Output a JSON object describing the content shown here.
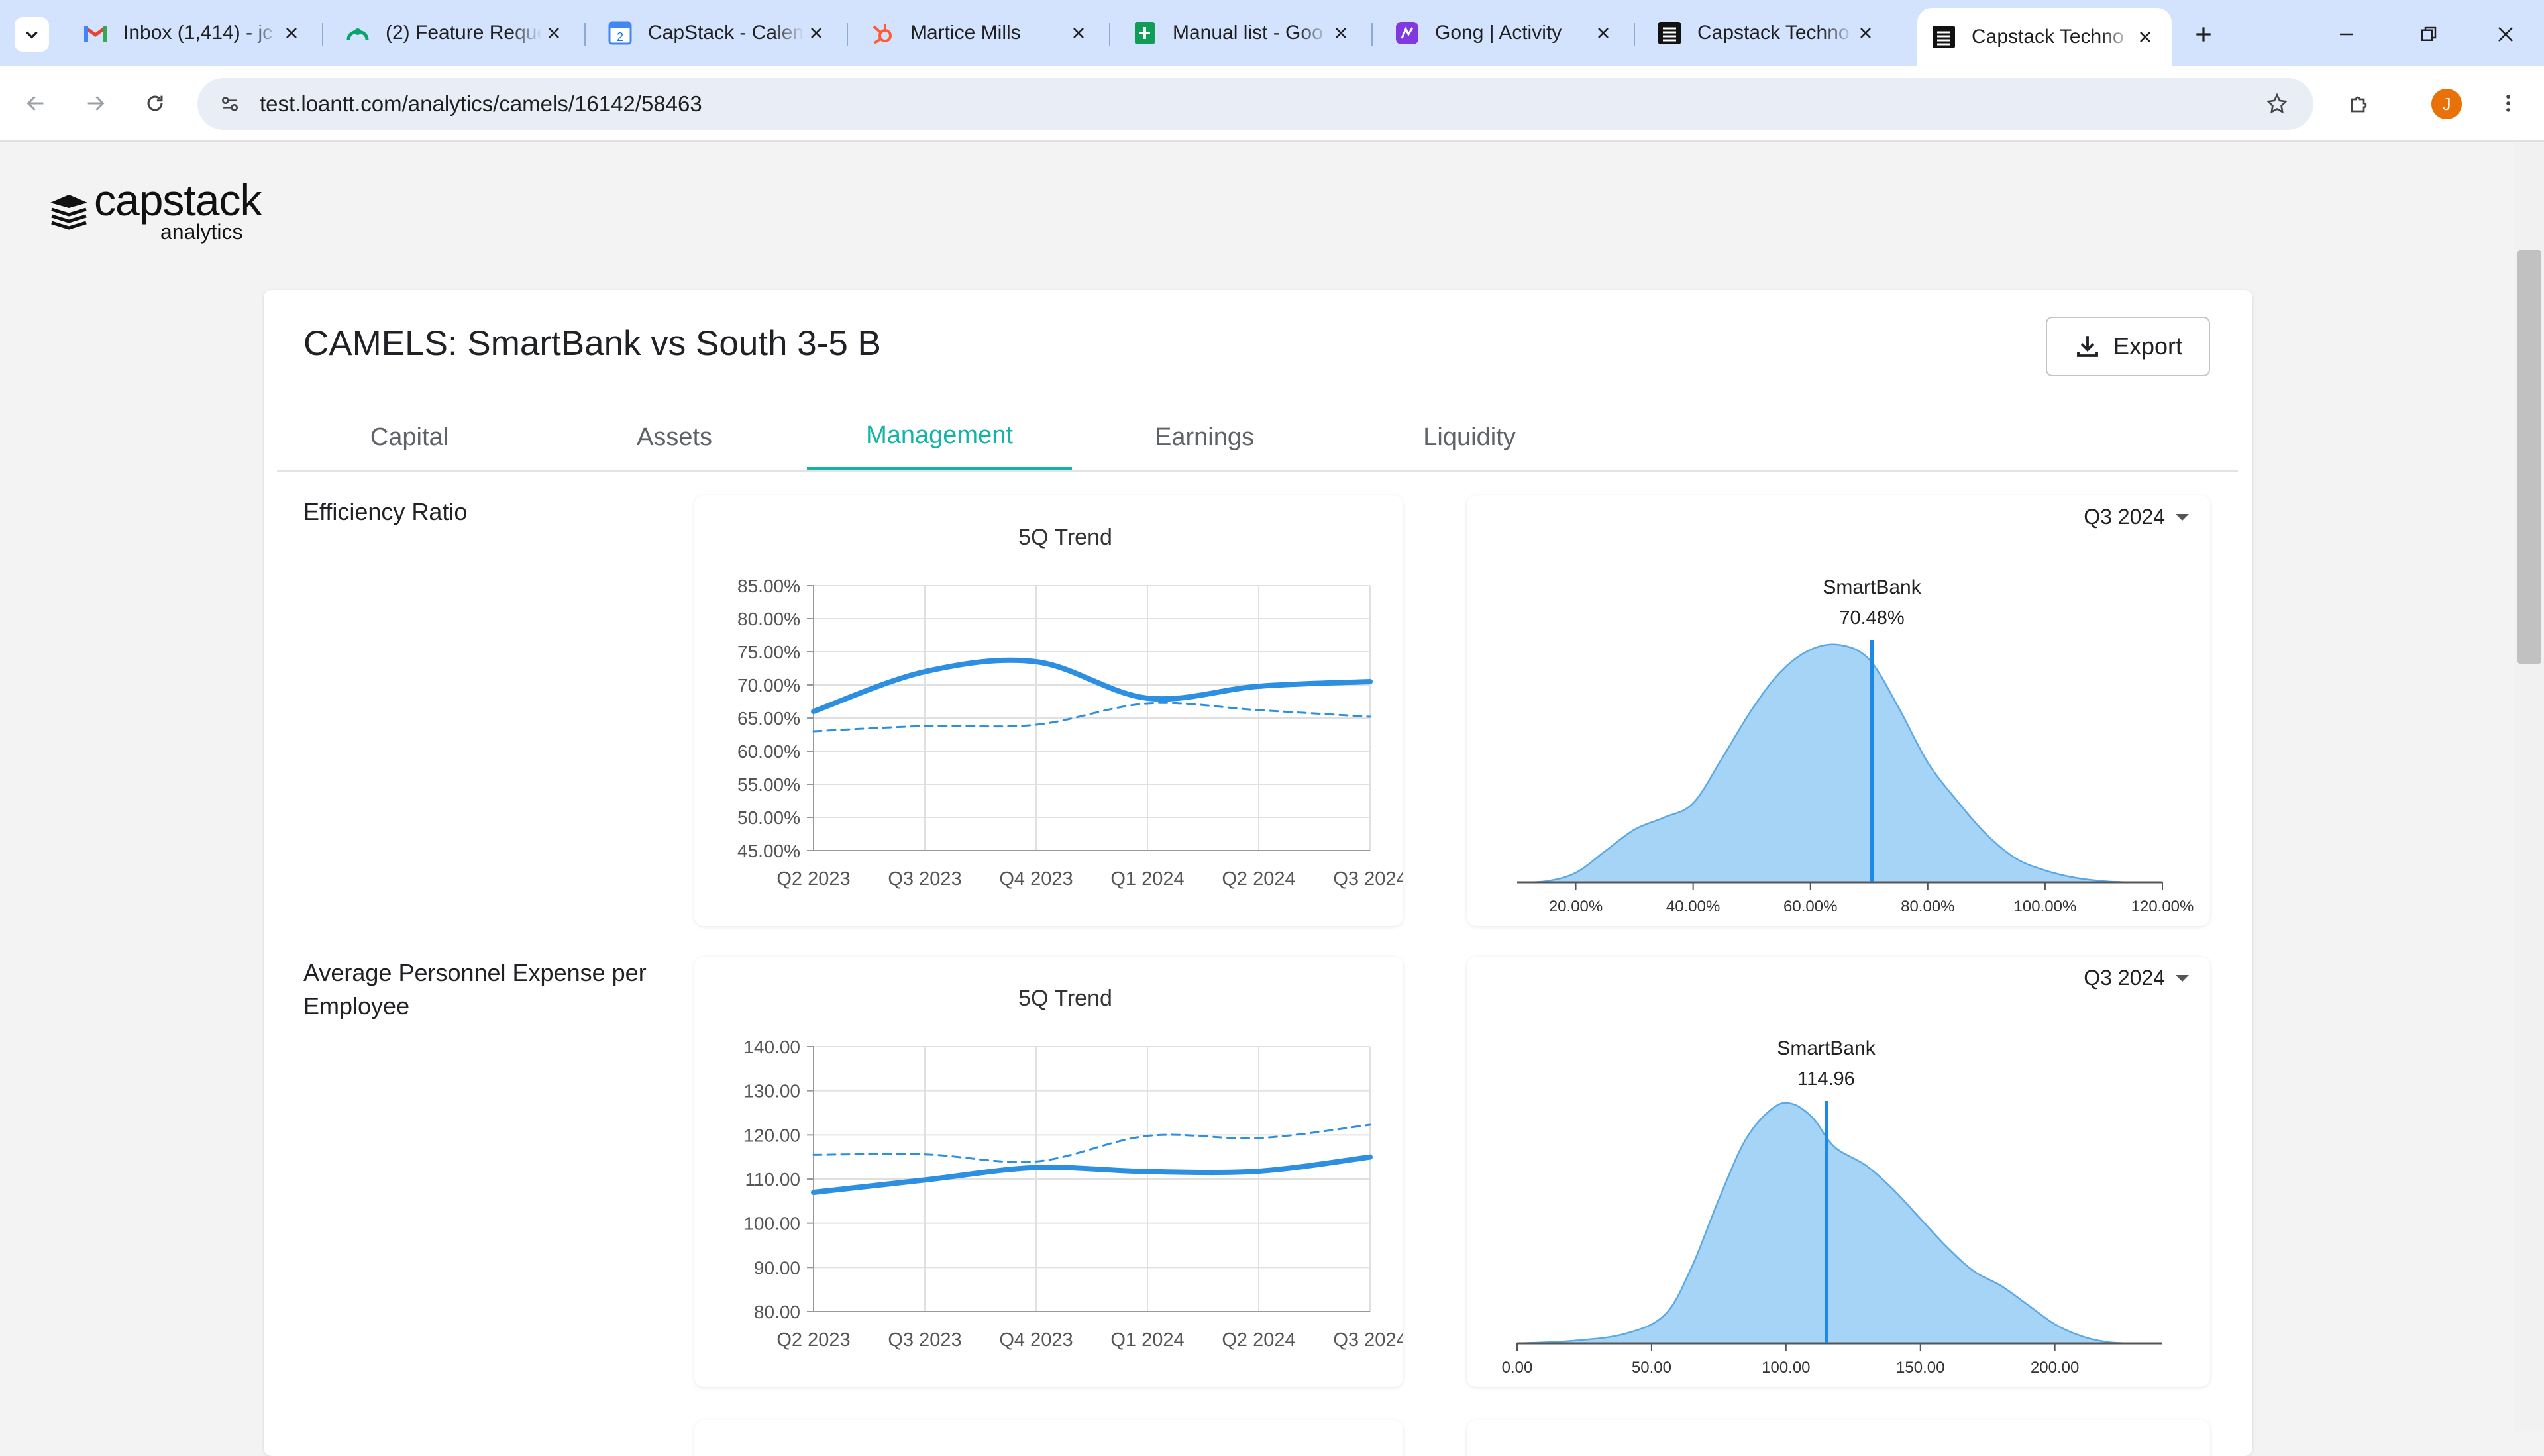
{
  "browser": {
    "tabs": [
      {
        "title": "Inbox (1,414) - jc",
        "icon": "gmail-icon",
        "active": false
      },
      {
        "title": "(2) Feature Reque",
        "icon": "feature-request-icon",
        "active": false
      },
      {
        "title": "CapStack - Calen",
        "icon": "calendar-icon",
        "active": false
      },
      {
        "title": "Martice Mills",
        "icon": "hubspot-icon",
        "active": false
      },
      {
        "title": "Manual list - Goo",
        "icon": "sheets-icon",
        "active": false
      },
      {
        "title": "Gong | Activity",
        "icon": "gong-icon",
        "active": false
      },
      {
        "title": "Capstack Techno",
        "icon": "capstack-icon",
        "active": false
      },
      {
        "title": "Capstack Techno",
        "icon": "capstack-icon",
        "active": true
      }
    ],
    "url": "test.loantt.com/analytics/camels/16142/58463",
    "profile_initial": "J",
    "colors": {
      "tabstrip": "#d3e3fd",
      "profile": "#e8710a"
    }
  },
  "app": {
    "logo": {
      "name": "capstack",
      "sub": "analytics"
    },
    "title": "CAMELS: SmartBank vs South 3-5 B",
    "export_label": "Export",
    "tabs": [
      "Capital",
      "Assets",
      "Management",
      "Earnings",
      "Liquidity"
    ],
    "active_tab": "Management",
    "accent": "#13b3a6"
  },
  "metrics": [
    {
      "label": "Efficiency Ratio",
      "quarter": "Q3 2024",
      "trend": {
        "title": "5Q Trend",
        "yticks": [
          "85.00%",
          "80.00%",
          "75.00%",
          "70.00%",
          "65.00%",
          "60.00%",
          "55.00%",
          "50.00%",
          "45.00%"
        ],
        "xticks": [
          "Q2 2023",
          "Q3 2023",
          "Q4 2023",
          "Q1 2024",
          "Q2 2024",
          "Q3 2024"
        ]
      },
      "dist": {
        "bank_name": "SmartBank",
        "bank_value_label": "70.48%",
        "xticks": [
          "20.00%",
          "40.00%",
          "60.00%",
          "80.00%",
          "100.00%",
          "120.00%"
        ]
      }
    },
    {
      "label": "Average Personnel Expense per Employee",
      "quarter": "Q3 2024",
      "trend": {
        "title": "5Q Trend",
        "yticks": [
          "140.00",
          "130.00",
          "120.00",
          "110.00",
          "100.00",
          "90.00",
          "80.00"
        ],
        "xticks": [
          "Q2 2023",
          "Q3 2023",
          "Q4 2023",
          "Q1 2024",
          "Q2 2024",
          "Q3 2024"
        ]
      },
      "dist": {
        "bank_name": "SmartBank",
        "bank_value_label": "114.96",
        "xticks": [
          "0.00",
          "50.00",
          "100.00",
          "150.00",
          "200.00"
        ]
      }
    }
  ],
  "chart_data": [
    {
      "type": "line",
      "title": "5Q Trend",
      "x": [
        "Q2 2023",
        "Q3 2023",
        "Q4 2023",
        "Q1 2024",
        "Q2 2024",
        "Q3 2024"
      ],
      "ylim": [
        45,
        85
      ],
      "series": [
        {
          "values": [
            66.0,
            72.0,
            73.5,
            68.0,
            69.8,
            70.5
          ],
          "style": "solid",
          "color": "#2c8fe0"
        },
        {
          "values": [
            63.0,
            63.8,
            64.0,
            67.2,
            66.2,
            65.2
          ],
          "style": "dashed",
          "color": "#2c8fe0"
        }
      ],
      "grid": true
    },
    {
      "type": "area",
      "x_range": [
        10,
        120
      ],
      "marker": {
        "x": 70.48,
        "label": "SmartBank",
        "value_label": "70.48%"
      },
      "density": [
        [
          10,
          0
        ],
        [
          15,
          0.005
        ],
        [
          20,
          0.04
        ],
        [
          25,
          0.13
        ],
        [
          30,
          0.22
        ],
        [
          35,
          0.27
        ],
        [
          40,
          0.33
        ],
        [
          45,
          0.52
        ],
        [
          50,
          0.72
        ],
        [
          55,
          0.88
        ],
        [
          60,
          0.97
        ],
        [
          65,
          0.99
        ],
        [
          70,
          0.93
        ],
        [
          75,
          0.73
        ],
        [
          80,
          0.5
        ],
        [
          85,
          0.34
        ],
        [
          90,
          0.2
        ],
        [
          95,
          0.1
        ],
        [
          100,
          0.05
        ],
        [
          105,
          0.02
        ],
        [
          110,
          0.005
        ],
        [
          115,
          0
        ],
        [
          120,
          0
        ]
      ],
      "grid": false
    },
    {
      "type": "line",
      "title": "5Q Trend",
      "x": [
        "Q2 2023",
        "Q3 2023",
        "Q4 2023",
        "Q1 2024",
        "Q2 2024",
        "Q3 2024"
      ],
      "ylim": [
        80,
        140
      ],
      "series": [
        {
          "values": [
            107.0,
            109.8,
            112.6,
            111.7,
            111.8,
            115.0
          ],
          "style": "solid",
          "color": "#2c8fe0"
        },
        {
          "values": [
            115.5,
            115.6,
            114.0,
            119.8,
            119.3,
            122.3
          ],
          "style": "dashed",
          "color": "#2c8fe0"
        }
      ],
      "grid": true
    },
    {
      "type": "area",
      "x_range": [
        0,
        240
      ],
      "marker": {
        "x": 114.96,
        "label": "SmartBank",
        "value_label": "114.96"
      },
      "density": [
        [
          0,
          0
        ],
        [
          20,
          0.01
        ],
        [
          40,
          0.04
        ],
        [
          55,
          0.12
        ],
        [
          65,
          0.32
        ],
        [
          75,
          0.6
        ],
        [
          85,
          0.85
        ],
        [
          95,
          0.98
        ],
        [
          102,
          1.0
        ],
        [
          110,
          0.94
        ],
        [
          118,
          0.82
        ],
        [
          130,
          0.74
        ],
        [
          140,
          0.64
        ],
        [
          150,
          0.52
        ],
        [
          160,
          0.4
        ],
        [
          170,
          0.3
        ],
        [
          180,
          0.24
        ],
        [
          190,
          0.16
        ],
        [
          200,
          0.08
        ],
        [
          210,
          0.03
        ],
        [
          220,
          0.005
        ],
        [
          230,
          0
        ],
        [
          240,
          0
        ]
      ],
      "grid": false
    }
  ]
}
